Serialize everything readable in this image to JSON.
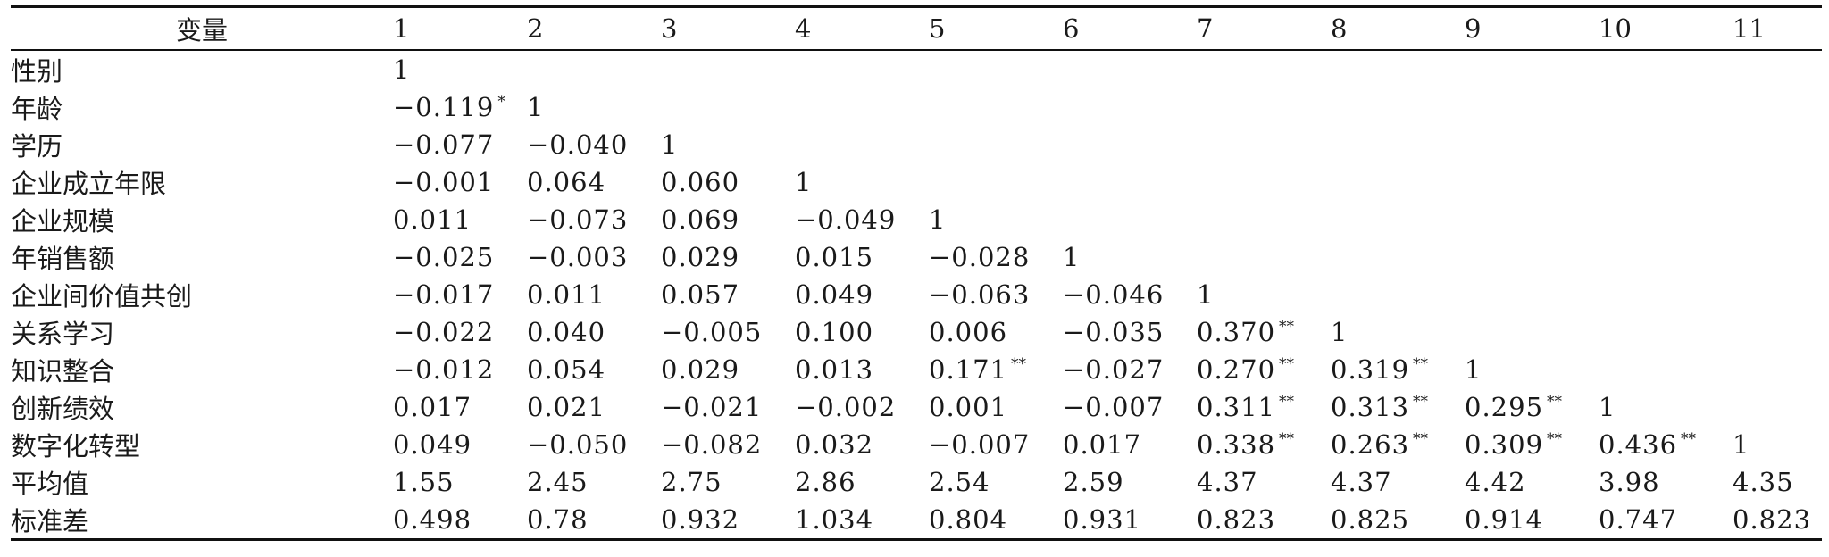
{
  "table": {
    "header_label": "变量",
    "columns": [
      "1",
      "2",
      "3",
      "4",
      "5",
      "6",
      "7",
      "8",
      "9",
      "10",
      "11"
    ],
    "rows": [
      {
        "label": "性别",
        "cells": [
          {
            "v": "1",
            "s": ""
          }
        ]
      },
      {
        "label": "年龄",
        "cells": [
          {
            "v": "−0.119",
            "s": "*"
          },
          {
            "v": "1",
            "s": ""
          }
        ]
      },
      {
        "label": "学历",
        "cells": [
          {
            "v": "−0.077",
            "s": ""
          },
          {
            "v": "−0.040",
            "s": ""
          },
          {
            "v": "1",
            "s": ""
          }
        ]
      },
      {
        "label": "企业成立年限",
        "cells": [
          {
            "v": "−0.001",
            "s": ""
          },
          {
            "v": "0.064",
            "s": ""
          },
          {
            "v": "0.060",
            "s": ""
          },
          {
            "v": "1",
            "s": ""
          }
        ]
      },
      {
        "label": "企业规模",
        "cells": [
          {
            "v": "0.011",
            "s": ""
          },
          {
            "v": "−0.073",
            "s": ""
          },
          {
            "v": "0.069",
            "s": ""
          },
          {
            "v": "−0.049",
            "s": ""
          },
          {
            "v": "1",
            "s": ""
          }
        ]
      },
      {
        "label": "年销售额",
        "cells": [
          {
            "v": "−0.025",
            "s": ""
          },
          {
            "v": "−0.003",
            "s": ""
          },
          {
            "v": "0.029",
            "s": ""
          },
          {
            "v": "0.015",
            "s": ""
          },
          {
            "v": "−0.028",
            "s": ""
          },
          {
            "v": "1",
            "s": ""
          }
        ]
      },
      {
        "label": "企业间价值共创",
        "cells": [
          {
            "v": "−0.017",
            "s": ""
          },
          {
            "v": "0.011",
            "s": ""
          },
          {
            "v": "0.057",
            "s": ""
          },
          {
            "v": "0.049",
            "s": ""
          },
          {
            "v": "−0.063",
            "s": ""
          },
          {
            "v": "−0.046",
            "s": ""
          },
          {
            "v": "1",
            "s": ""
          }
        ]
      },
      {
        "label": "关系学习",
        "cells": [
          {
            "v": "−0.022",
            "s": ""
          },
          {
            "v": "0.040",
            "s": ""
          },
          {
            "v": "−0.005",
            "s": ""
          },
          {
            "v": "0.100",
            "s": ""
          },
          {
            "v": "0.006",
            "s": ""
          },
          {
            "v": "−0.035",
            "s": ""
          },
          {
            "v": "0.370",
            "s": "**"
          },
          {
            "v": "1",
            "s": ""
          }
        ]
      },
      {
        "label": "知识整合",
        "cells": [
          {
            "v": "−0.012",
            "s": ""
          },
          {
            "v": "0.054",
            "s": ""
          },
          {
            "v": "0.029",
            "s": ""
          },
          {
            "v": "0.013",
            "s": ""
          },
          {
            "v": "0.171",
            "s": "**"
          },
          {
            "v": "−0.027",
            "s": ""
          },
          {
            "v": "0.270",
            "s": "**"
          },
          {
            "v": "0.319",
            "s": "**"
          },
          {
            "v": "1",
            "s": ""
          }
        ]
      },
      {
        "label": "创新绩效",
        "cells": [
          {
            "v": "0.017",
            "s": ""
          },
          {
            "v": "0.021",
            "s": ""
          },
          {
            "v": "−0.021",
            "s": ""
          },
          {
            "v": "−0.002",
            "s": ""
          },
          {
            "v": "0.001",
            "s": ""
          },
          {
            "v": "−0.007",
            "s": ""
          },
          {
            "v": "0.311",
            "s": "**"
          },
          {
            "v": "0.313",
            "s": "**"
          },
          {
            "v": "0.295",
            "s": "**"
          },
          {
            "v": "1",
            "s": ""
          }
        ]
      },
      {
        "label": "数字化转型",
        "cells": [
          {
            "v": "0.049",
            "s": ""
          },
          {
            "v": "−0.050",
            "s": ""
          },
          {
            "v": "−0.082",
            "s": ""
          },
          {
            "v": "0.032",
            "s": ""
          },
          {
            "v": "−0.007",
            "s": ""
          },
          {
            "v": "0.017",
            "s": ""
          },
          {
            "v": "0.338",
            "s": "**"
          },
          {
            "v": "0.263",
            "s": "**"
          },
          {
            "v": "0.309",
            "s": "**"
          },
          {
            "v": "0.436",
            "s": "**"
          },
          {
            "v": "1",
            "s": ""
          }
        ]
      },
      {
        "label": "平均值",
        "cells": [
          {
            "v": "1.55",
            "s": ""
          },
          {
            "v": "2.45",
            "s": ""
          },
          {
            "v": "2.75",
            "s": ""
          },
          {
            "v": "2.86",
            "s": ""
          },
          {
            "v": "2.54",
            "s": ""
          },
          {
            "v": "2.59",
            "s": ""
          },
          {
            "v": "4.37",
            "s": ""
          },
          {
            "v": "4.37",
            "s": ""
          },
          {
            "v": "4.42",
            "s": ""
          },
          {
            "v": "3.98",
            "s": ""
          },
          {
            "v": "4.35",
            "s": ""
          }
        ]
      },
      {
        "label": "标准差",
        "cells": [
          {
            "v": "0.498",
            "s": ""
          },
          {
            "v": "0.78",
            "s": ""
          },
          {
            "v": "0.932",
            "s": ""
          },
          {
            "v": "1.034",
            "s": ""
          },
          {
            "v": "0.804",
            "s": ""
          },
          {
            "v": "0.931",
            "s": ""
          },
          {
            "v": "0.823",
            "s": ""
          },
          {
            "v": "0.825",
            "s": ""
          },
          {
            "v": "0.914",
            "s": ""
          },
          {
            "v": "0.747",
            "s": ""
          },
          {
            "v": "0.823",
            "s": ""
          }
        ]
      }
    ]
  }
}
